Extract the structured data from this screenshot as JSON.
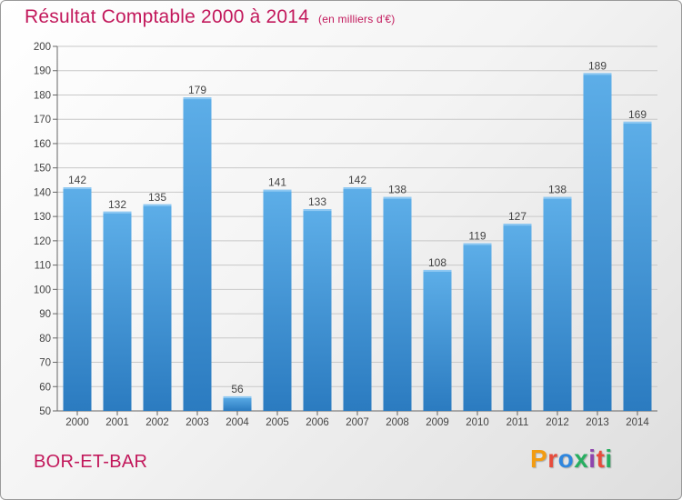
{
  "header": {
    "title": "Résultat Comptable 2000 à 2014",
    "unit": "(en milliers d'€)"
  },
  "footer": {
    "commune": "BOR-ET-BAR",
    "logo_letters": [
      "P",
      "r",
      "o",
      "x",
      "i",
      "t",
      "i"
    ],
    "logo_colors": [
      "#f39c12",
      "#e74c3c",
      "#2e86de",
      "#27ae60",
      "#8e44ad",
      "#e74c3c",
      "#27ae60"
    ]
  },
  "colors": {
    "title": "#c2185b",
    "bar_top": "#5daee8",
    "bar_bottom": "#2b7bc0",
    "grid": "#c8c8c8",
    "axis_text": "#444444"
  },
  "chart_data": {
    "type": "bar",
    "categories": [
      "2000",
      "2001",
      "2002",
      "2003",
      "2004",
      "2005",
      "2006",
      "2007",
      "2008",
      "2009",
      "2010",
      "2011",
      "2012",
      "2013",
      "2014"
    ],
    "values": [
      142,
      132,
      135,
      179,
      56,
      141,
      133,
      142,
      138,
      108,
      119,
      127,
      138,
      189,
      169
    ],
    "ylim": [
      50,
      200
    ],
    "yticks": [
      50,
      60,
      70,
      80,
      90,
      100,
      110,
      120,
      130,
      140,
      150,
      160,
      170,
      180,
      190,
      200
    ],
    "grid": true,
    "legend": "none"
  }
}
